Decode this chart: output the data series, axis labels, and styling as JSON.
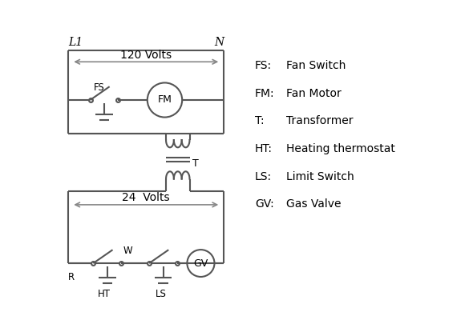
{
  "background_color": "#ffffff",
  "line_color": "#555555",
  "arrow_color": "#888888",
  "text_color": "#000000",
  "legend_items": [
    [
      "FS:",
      "Fan Switch"
    ],
    [
      "FM:",
      "Fan Motor"
    ],
    [
      "T:",
      "Transformer"
    ],
    [
      "HT:",
      "Heating thermostat"
    ],
    [
      "LS:",
      "Limit Switch"
    ],
    [
      "GV:",
      "Gas Valve"
    ]
  ],
  "L1_label": "L1",
  "N_label": "N",
  "volts120_label": "120 Volts",
  "volts24_label": "24  Volts",
  "T_label": "T",
  "R_label": "R",
  "W_label": "W",
  "HT_label": "HT",
  "LS_label": "LS",
  "FS_label": "FS",
  "FM_label": "FM",
  "GV_label": "GV"
}
